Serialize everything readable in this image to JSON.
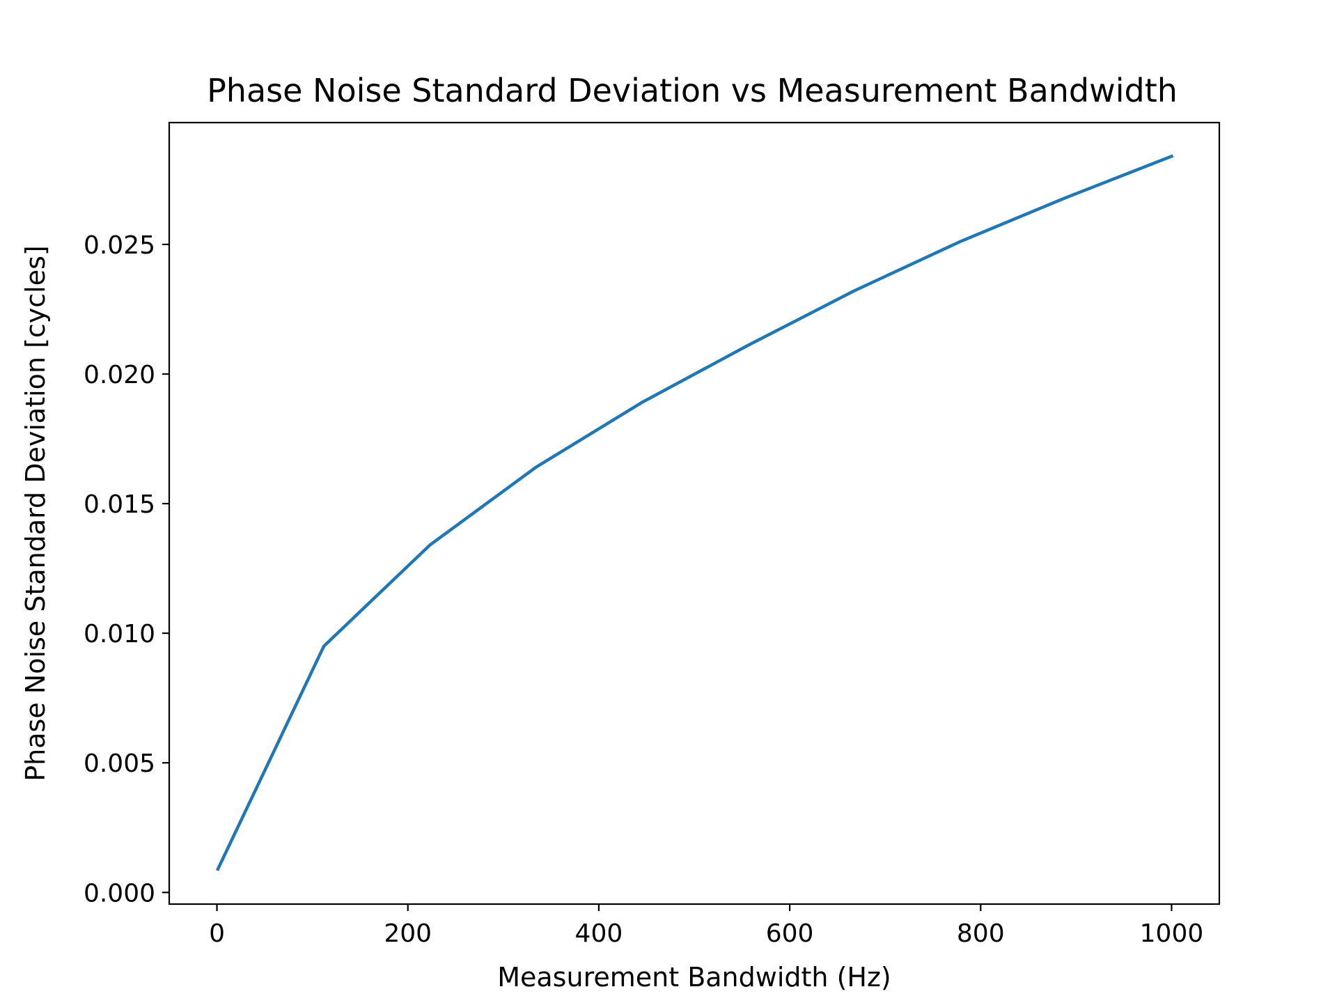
{
  "chart_data": {
    "type": "line",
    "title": "Phase Noise Standard Deviation vs Measurement Bandwidth",
    "xlabel": "Measurement Bandwidth (Hz)",
    "ylabel": "Phase Noise Standard Deviation [cycles]",
    "xlim": [
      -50,
      1050
    ],
    "ylim": [
      -0.00045,
      0.0297
    ],
    "xticks": [
      0,
      200,
      400,
      600,
      800,
      1000
    ],
    "xtick_labels": [
      "0",
      "200",
      "400",
      "600",
      "800",
      "1000"
    ],
    "yticks": [
      0.0,
      0.005,
      0.01,
      0.015,
      0.02,
      0.025
    ],
    "ytick_labels": [
      "0.000",
      "0.005",
      "0.010",
      "0.015",
      "0.020",
      "0.025"
    ],
    "grid": false,
    "legend": "none",
    "series_color": "#1f77b4",
    "x": [
      1,
      112,
      223,
      334,
      445,
      556,
      667,
      778,
      889,
      1000
    ],
    "series": [
      {
        "values": [
          0.0009,
          0.0095,
          0.0134,
          0.0164,
          0.0189,
          0.0211,
          0.0232,
          0.0251,
          0.0268,
          0.0284
        ]
      }
    ]
  }
}
